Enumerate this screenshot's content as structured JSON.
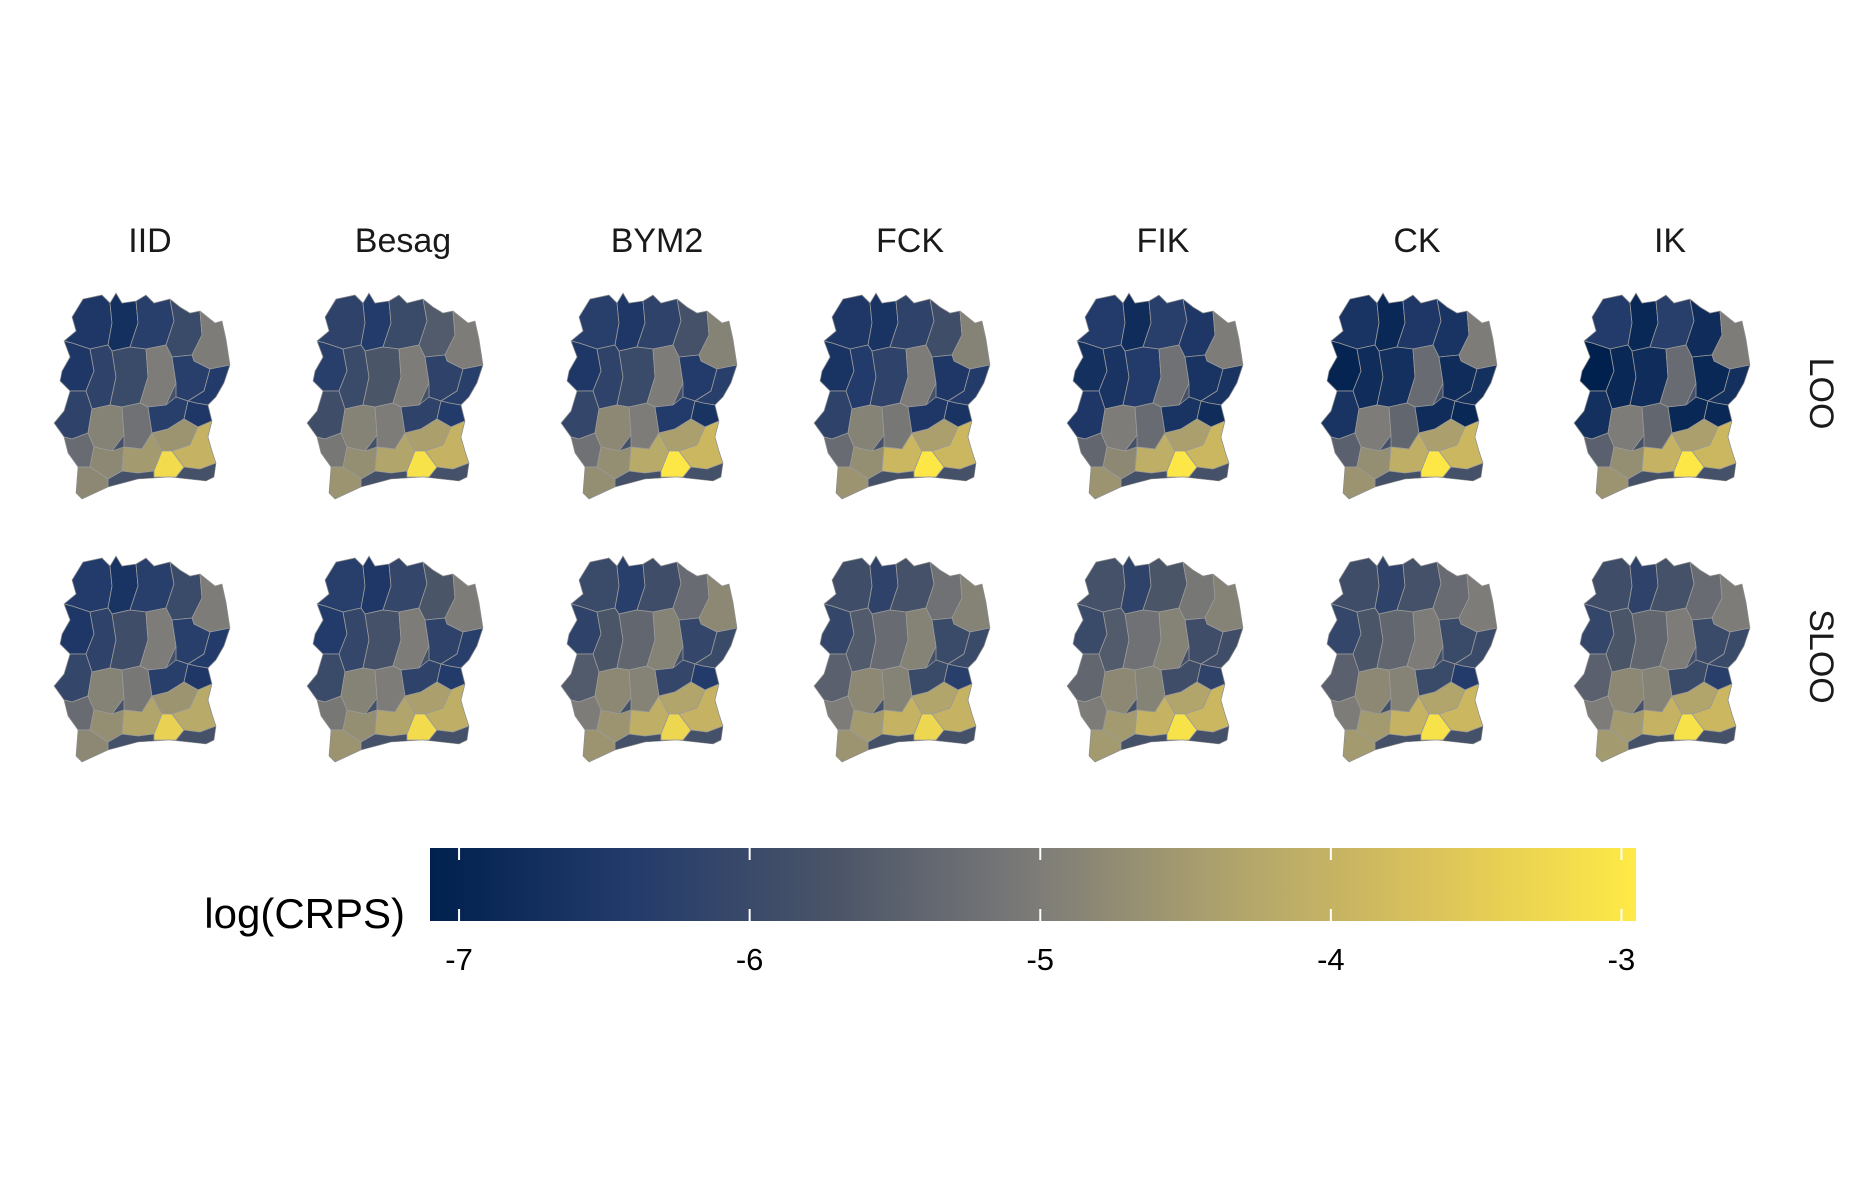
{
  "figure": {
    "models": [
      "IID",
      "Besag",
      "BYM2",
      "FCK",
      "FIK",
      "CK",
      "IK"
    ],
    "schemes": [
      "LOO",
      "SLOO"
    ]
  },
  "legend": {
    "title": "log(CRPS)",
    "ticks": [
      "-7",
      "-6",
      "-5",
      "-4",
      "-3"
    ],
    "tick_values": [
      -7,
      -6,
      -5,
      -4,
      -3
    ],
    "range": [
      -7.1,
      -2.95
    ]
  },
  "colors": {
    "scale": [
      "#00204d",
      "#233b6b",
      "#4a5468",
      "#7c7b78",
      "#b0a46c",
      "#dcc35a",
      "#ffea46"
    ],
    "region_border": "#9a9a9a"
  },
  "chart_data": {
    "type": "heatmap",
    "map_regions": [
      [
        [
          -6.5,
          -6.7,
          -6.3,
          -6.0,
          -5.0,
          -6.5,
          -6.2,
          -6.0,
          -5.0,
          -6.3,
          -6.4,
          -6.2,
          -4.9,
          -5.2,
          -6.3,
          -6.5,
          -5.3,
          -4.8,
          -4.5,
          -4.6,
          -3.2,
          -4.0,
          -4.8
        ],
        [
          -6.2,
          -6.4,
          -6.0,
          -5.6,
          -5.0,
          -6.3,
          -6.0,
          -5.7,
          -5.0,
          -6.2,
          -6.3,
          -5.9,
          -4.9,
          -5.0,
          -6.2,
          -6.4,
          -5.1,
          -4.7,
          -4.3,
          -4.4,
          -3.1,
          -4.0,
          -4.6
        ],
        [
          -6.3,
          -6.5,
          -6.2,
          -5.8,
          -4.9,
          -6.5,
          -6.2,
          -6.0,
          -5.0,
          -6.4,
          -6.3,
          -6.1,
          -4.8,
          -5.0,
          -6.4,
          -6.6,
          -5.2,
          -4.7,
          -4.2,
          -4.4,
          -3.0,
          -3.9,
          -4.7
        ],
        [
          -6.5,
          -6.6,
          -6.2,
          -5.9,
          -4.9,
          -6.6,
          -6.4,
          -6.2,
          -5.0,
          -6.5,
          -6.4,
          -6.2,
          -4.9,
          -5.1,
          -6.5,
          -6.6,
          -5.3,
          -4.7,
          -3.9,
          -4.4,
          -3.0,
          -3.9,
          -4.6
        ],
        [
          -6.4,
          -6.8,
          -6.3,
          -6.5,
          -5.0,
          -6.7,
          -6.6,
          -6.4,
          -5.2,
          -6.6,
          -6.6,
          -6.5,
          -5.0,
          -5.3,
          -6.6,
          -6.8,
          -5.4,
          -4.8,
          -4.1,
          -4.4,
          -3.0,
          -3.9,
          -4.6
        ],
        [
          -6.6,
          -6.9,
          -6.5,
          -6.6,
          -5.0,
          -7.0,
          -6.8,
          -6.7,
          -5.3,
          -6.8,
          -6.7,
          -6.6,
          -5.0,
          -5.4,
          -6.8,
          -6.9,
          -5.5,
          -4.7,
          -4.1,
          -4.4,
          -3.0,
          -3.9,
          -4.6
        ],
        [
          -6.4,
          -6.9,
          -6.3,
          -6.8,
          -5.0,
          -7.1,
          -6.9,
          -6.8,
          -5.3,
          -6.9,
          -6.7,
          -6.7,
          -5.0,
          -5.4,
          -6.9,
          -6.9,
          -5.5,
          -4.7,
          -4.0,
          -4.4,
          -3.0,
          -3.9,
          -4.6
        ]
      ],
      [
        [
          -6.4,
          -6.6,
          -6.3,
          -6.0,
          -5.0,
          -6.5,
          -6.2,
          -5.9,
          -5.0,
          -6.3,
          -6.4,
          -6.1,
          -4.9,
          -5.1,
          -6.3,
          -6.5,
          -5.3,
          -4.7,
          -4.3,
          -4.6,
          -3.4,
          -4.2,
          -4.8
        ],
        [
          -6.3,
          -6.5,
          -6.1,
          -5.7,
          -5.0,
          -6.4,
          -6.1,
          -5.8,
          -5.0,
          -6.2,
          -6.3,
          -6.0,
          -4.9,
          -5.0,
          -6.2,
          -6.4,
          -5.1,
          -4.7,
          -4.3,
          -4.4,
          -3.2,
          -4.1,
          -4.6
        ],
        [
          -6.0,
          -6.3,
          -5.9,
          -5.3,
          -4.8,
          -6.2,
          -5.7,
          -5.4,
          -4.9,
          -6.1,
          -6.0,
          -5.6,
          -4.8,
          -4.9,
          -6.1,
          -6.4,
          -5.0,
          -4.6,
          -4.1,
          -4.3,
          -3.3,
          -4.0,
          -4.6
        ],
        [
          -5.9,
          -6.2,
          -5.8,
          -5.2,
          -4.9,
          -6.1,
          -5.6,
          -5.3,
          -4.9,
          -6.0,
          -6.0,
          -5.5,
          -4.8,
          -4.9,
          -6.0,
          -6.3,
          -5.0,
          -4.5,
          -4.0,
          -4.3,
          -3.3,
          -4.0,
          -4.6
        ],
        [
          -5.8,
          -6.2,
          -5.7,
          -5.1,
          -4.9,
          -6.0,
          -5.6,
          -5.2,
          -4.9,
          -5.9,
          -5.9,
          -5.4,
          -4.8,
          -4.9,
          -5.9,
          -6.2,
          -5.0,
          -4.5,
          -4.0,
          -4.3,
          -3.1,
          -3.9,
          -4.5
        ],
        [
          -5.9,
          -6.2,
          -5.8,
          -5.3,
          -5.0,
          -6.1,
          -5.7,
          -5.4,
          -5.0,
          -6.0,
          -6.0,
          -5.5,
          -4.8,
          -4.9,
          -6.0,
          -6.4,
          -5.0,
          -4.5,
          -4.0,
          -4.3,
          -3.1,
          -3.9,
          -4.5
        ],
        [
          -5.9,
          -6.2,
          -5.8,
          -5.3,
          -5.0,
          -6.1,
          -5.7,
          -5.4,
          -5.0,
          -6.0,
          -6.0,
          -5.5,
          -4.8,
          -4.9,
          -6.0,
          -6.3,
          -5.0,
          -4.5,
          -4.0,
          -4.3,
          -3.1,
          -3.9,
          -4.5
        ]
      ]
    ]
  }
}
